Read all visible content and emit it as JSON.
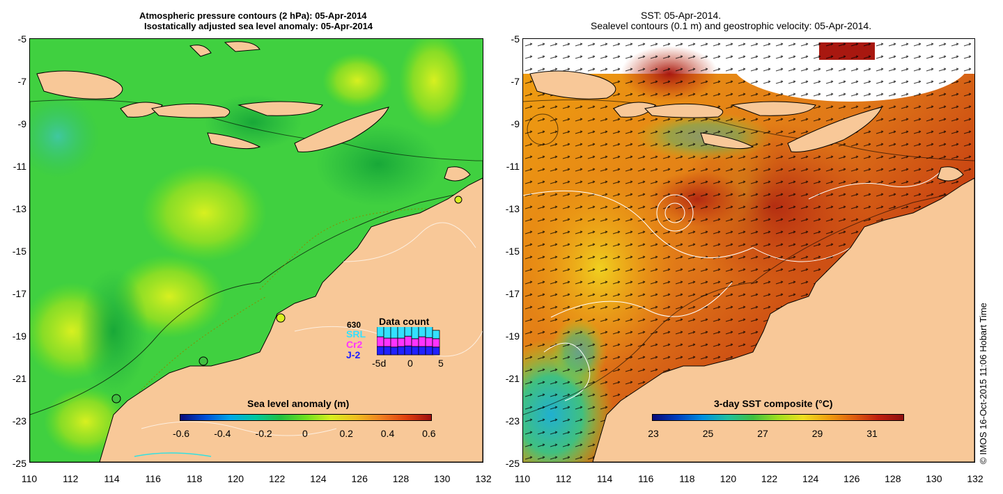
{
  "left_panel": {
    "title_line1": "Atmospheric pressure contours (2 hPa): 05-Apr-2014",
    "title_line2": "Isostatically adjusted sea level anomaly: 05-Apr-2014",
    "colorbar": {
      "title": "Sea level anomaly (m)",
      "ticks": [
        "-0.6",
        "-0.4",
        "-0.2",
        "0",
        "0.2",
        "0.4",
        "0.6"
      ],
      "colors": [
        "#0a0a7a",
        "#0050d8",
        "#00a8e8",
        "#00c8a0",
        "#22c040",
        "#6ee020",
        "#d8f020",
        "#f0c020",
        "#f08020",
        "#e04010",
        "#a01010"
      ]
    },
    "legend": {
      "title": "Data count",
      "count_label": "630",
      "missions": [
        "SRL",
        "Cr2",
        "J-2"
      ],
      "mission_colors": [
        "#33e0ff",
        "#ff33ff",
        "#2020ff"
      ],
      "axis_ticks": [
        "-5d",
        "0",
        "5"
      ],
      "bars": [
        {
          "j2": 0.3,
          "cr2": 0.35,
          "srl": 0.55
        },
        {
          "j2": 0.3,
          "cr2": 0.3,
          "srl": 0.45
        },
        {
          "j2": 0.28,
          "cr2": 0.32,
          "srl": 0.5
        },
        {
          "j2": 0.3,
          "cr2": 0.3,
          "srl": 0.45
        },
        {
          "j2": 0.32,
          "cr2": 0.35,
          "srl": 0.6
        },
        {
          "j2": 0.3,
          "cr2": 0.28,
          "srl": 0.45
        },
        {
          "j2": 0.3,
          "cr2": 0.35,
          "srl": 0.55
        },
        {
          "j2": 0.3,
          "cr2": 0.32,
          "srl": 0.45
        },
        {
          "j2": 0.28,
          "cr2": 0.3,
          "srl": 0.3
        }
      ]
    }
  },
  "right_panel": {
    "title_line1": "SST: 05-Apr-2014.",
    "title_line2": "Sealevel contours (0.1 m) and geostrophic velocity: 05-Apr-2014.",
    "colorbar": {
      "title": "3-day SST composite (°C)",
      "ticks": [
        "23",
        "25",
        "27",
        "29",
        "31"
      ],
      "colors": [
        "#0a0a7a",
        "#0040c0",
        "#0090e0",
        "#20c0a0",
        "#40c040",
        "#a0e020",
        "#f0e020",
        "#f0a010",
        "#e06010",
        "#c02010",
        "#901010"
      ]
    }
  },
  "axes": {
    "lat_labels": [
      "-5",
      "-7",
      "-9",
      "-11",
      "-13",
      "-15",
      "-17",
      "-19",
      "-21",
      "-23",
      "-25"
    ],
    "lon_labels": [
      "110",
      "112",
      "114",
      "116",
      "118",
      "120",
      "122",
      "124",
      "126",
      "128",
      "130",
      "132"
    ]
  },
  "credit": "© IMOS 16-Oct-2015 11:06 Hobart Time",
  "colors": {
    "land": "#f8c898",
    "ocean_base": "#40d040",
    "sst_base": "#e07818"
  }
}
